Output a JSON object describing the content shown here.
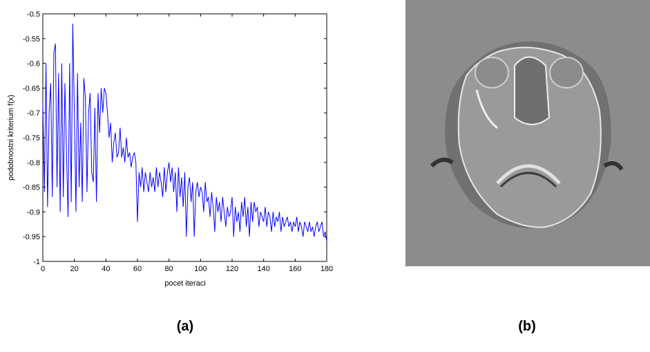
{
  "chart_data": {
    "type": "line",
    "xlabel": "pocet iteraci",
    "ylabel": "podobnostni kriterium f(x)",
    "xlim": [
      0,
      180
    ],
    "ylim": [
      -1,
      -0.5
    ],
    "xticks": [
      0,
      20,
      40,
      60,
      80,
      100,
      120,
      140,
      160,
      180
    ],
    "yticks": [
      -0.5,
      -0.55,
      -0.6,
      -0.65,
      -0.7,
      -0.75,
      -0.8,
      -0.85,
      -0.9,
      -0.95,
      -1
    ],
    "x": [
      0,
      1,
      2,
      3,
      4,
      5,
      6,
      7,
      8,
      9,
      10,
      11,
      12,
      13,
      14,
      15,
      16,
      17,
      18,
      19,
      20,
      21,
      22,
      23,
      24,
      25,
      26,
      27,
      28,
      29,
      30,
      31,
      32,
      33,
      34,
      35,
      36,
      37,
      38,
      39,
      40,
      41,
      42,
      43,
      44,
      45,
      46,
      47,
      48,
      49,
      50,
      51,
      52,
      53,
      54,
      55,
      56,
      57,
      58,
      59,
      60,
      61,
      62,
      63,
      64,
      65,
      66,
      67,
      68,
      69,
      70,
      71,
      72,
      73,
      74,
      75,
      76,
      77,
      78,
      79,
      80,
      81,
      82,
      83,
      84,
      85,
      86,
      87,
      88,
      89,
      90,
      91,
      92,
      93,
      94,
      95,
      96,
      97,
      98,
      99,
      100,
      101,
      102,
      103,
      104,
      105,
      106,
      107,
      108,
      109,
      110,
      111,
      112,
      113,
      114,
      115,
      116,
      117,
      118,
      119,
      120,
      121,
      122,
      123,
      124,
      125,
      126,
      127,
      128,
      129,
      130,
      131,
      132,
      133,
      134,
      135,
      136,
      137,
      138,
      139,
      140,
      141,
      142,
      143,
      144,
      145,
      146,
      147,
      148,
      149,
      150,
      151,
      152,
      153,
      154,
      155,
      156,
      157,
      158,
      159,
      160,
      161,
      162,
      163,
      164,
      165,
      166,
      167,
      168,
      169,
      170,
      171,
      172,
      173,
      174,
      175,
      176,
      177,
      178,
      179,
      180
    ],
    "series": [
      {
        "color": "#0000ff",
        "values": [
          -0.68,
          -0.86,
          -0.6,
          -0.89,
          -0.7,
          -0.64,
          -0.87,
          -0.58,
          -0.56,
          -0.85,
          -0.62,
          -0.9,
          -0.6,
          -0.87,
          -0.64,
          -0.78,
          -0.91,
          -0.6,
          -0.88,
          -0.52,
          -0.7,
          -0.9,
          -0.62,
          -0.85,
          -0.72,
          -0.88,
          -0.63,
          -0.67,
          -0.86,
          -0.7,
          -0.66,
          -0.82,
          -0.84,
          -0.69,
          -0.88,
          -0.66,
          -0.74,
          -0.65,
          -0.7,
          -0.65,
          -0.66,
          -0.7,
          -0.75,
          -0.72,
          -0.8,
          -0.76,
          -0.74,
          -0.79,
          -0.78,
          -0.73,
          -0.79,
          -0.77,
          -0.8,
          -0.75,
          -0.79,
          -0.78,
          -0.81,
          -0.79,
          -0.78,
          -0.8,
          -0.92,
          -0.82,
          -0.85,
          -0.81,
          -0.86,
          -0.82,
          -0.84,
          -0.86,
          -0.82,
          -0.85,
          -0.83,
          -0.86,
          -0.81,
          -0.85,
          -0.82,
          -0.84,
          -0.87,
          -0.81,
          -0.86,
          -0.82,
          -0.8,
          -0.84,
          -0.81,
          -0.86,
          -0.82,
          -0.9,
          -0.81,
          -0.87,
          -0.83,
          -0.89,
          -0.82,
          -0.95,
          -0.85,
          -0.83,
          -0.88,
          -0.84,
          -0.95,
          -0.86,
          -0.84,
          -0.87,
          -0.85,
          -0.86,
          -0.9,
          -0.84,
          -0.88,
          -0.87,
          -0.91,
          -0.86,
          -0.89,
          -0.94,
          -0.87,
          -0.9,
          -0.88,
          -0.92,
          -0.87,
          -0.9,
          -0.93,
          -0.89,
          -0.91,
          -0.9,
          -0.87,
          -0.95,
          -0.89,
          -0.92,
          -0.9,
          -0.94,
          -0.88,
          -0.91,
          -0.87,
          -0.93,
          -0.89,
          -0.95,
          -0.88,
          -0.92,
          -0.88,
          -0.9,
          -0.89,
          -0.93,
          -0.9,
          -0.91,
          -0.92,
          -0.89,
          -0.93,
          -0.9,
          -0.91,
          -0.94,
          -0.9,
          -0.93,
          -0.91,
          -0.92,
          -0.9,
          -0.94,
          -0.91,
          -0.93,
          -0.92,
          -0.91,
          -0.93,
          -0.92,
          -0.94,
          -0.92,
          -0.93,
          -0.91,
          -0.94,
          -0.92,
          -0.93,
          -0.95,
          -0.92,
          -0.93,
          -0.94,
          -0.92,
          -0.94,
          -0.93,
          -0.95,
          -0.93,
          -0.92,
          -0.94,
          -0.93,
          -0.92,
          -0.95,
          -0.94,
          -0.96
        ]
      }
    ]
  },
  "panels": {
    "a": "(a)",
    "b": "(b)"
  }
}
